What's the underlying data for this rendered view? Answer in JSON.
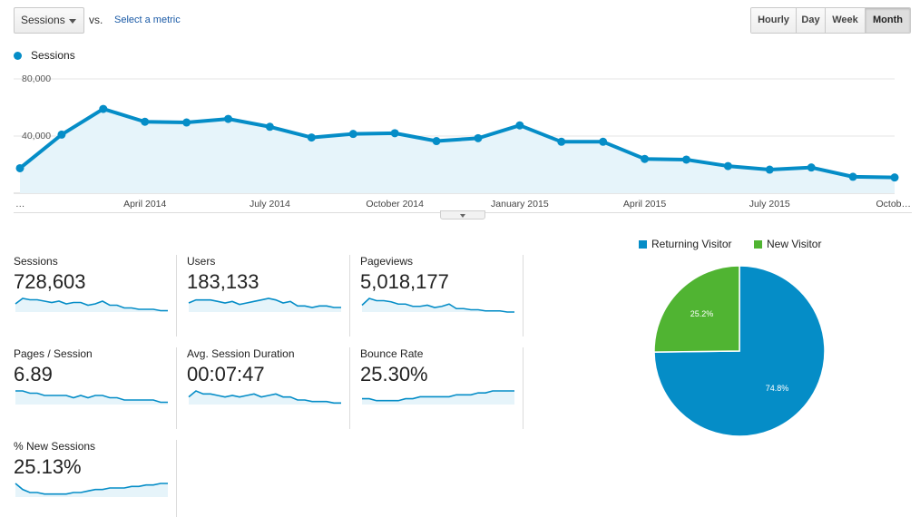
{
  "metric_selector": {
    "value": "Sessions"
  },
  "vs_label": "vs.",
  "select_metric_link": "Select a metric",
  "granularity": {
    "options": [
      "Hourly",
      "Day",
      "Week",
      "Month"
    ],
    "selected": "Month"
  },
  "colors": {
    "series": "#058dc7",
    "area": "#e6f4fa",
    "returning": "#058dc7",
    "new": "#50b432"
  },
  "chart_data": [
    {
      "type": "area",
      "legend_position": "top-left",
      "series": [
        {
          "name": "Sessions",
          "values": [
            17500,
            41000,
            59000,
            50000,
            49500,
            52000,
            46500,
            39000,
            41500,
            42000,
            36500,
            38500,
            47500,
            36000,
            36000,
            24000,
            23500,
            19000,
            16500,
            18000,
            11500,
            11000
          ]
        }
      ],
      "x_tick_labels": [
        "…",
        "April 2014",
        "July 2014",
        "October 2014",
        "January 2015",
        "April 2015",
        "July 2015",
        "Octob…"
      ],
      "y_tick_labels": [
        "80,000",
        "40,000"
      ],
      "ylim": [
        0,
        80000
      ],
      "grid": true
    },
    {
      "type": "pie",
      "legend_position": "top",
      "slices": [
        {
          "label": "Returning Visitor",
          "value": 74.8,
          "value_label": "74.8%"
        },
        {
          "label": "New Visitor",
          "value": 25.2,
          "value_label": "25.2%"
        }
      ]
    }
  ],
  "scorecards": [
    {
      "title": "Sessions",
      "value": "728,603",
      "spark": [
        6,
        10,
        9,
        9,
        8,
        7,
        8,
        6,
        7,
        7,
        5,
        6,
        8,
        5,
        5,
        3,
        3,
        2,
        2,
        2,
        1,
        1
      ]
    },
    {
      "title": "Users",
      "value": "183,133",
      "spark": [
        6,
        8,
        8,
        8,
        7,
        6,
        7,
        5,
        6,
        7,
        8,
        9,
        8,
        6,
        7,
        4,
        4,
        3,
        4,
        4,
        3,
        3
      ]
    },
    {
      "title": "Pageviews",
      "value": "5,018,177",
      "spark": [
        6,
        12,
        10,
        10,
        9,
        7,
        7,
        5,
        5,
        6,
        4,
        5,
        7,
        3,
        3,
        2,
        2,
        1,
        1,
        1,
        0,
        0
      ]
    },
    {
      "title": "Pages / Session",
      "value": "6.89",
      "spark": [
        6,
        6,
        5,
        5,
        4,
        4,
        4,
        4,
        3,
        4,
        3,
        4,
        4,
        3,
        3,
        2,
        2,
        2,
        2,
        2,
        1,
        1
      ]
    },
    {
      "title": "Avg. Session Duration",
      "value": "00:07:47",
      "spark": [
        5,
        9,
        7,
        7,
        6,
        5,
        6,
        5,
        6,
        7,
        5,
        6,
        7,
        5,
        5,
        3,
        3,
        2,
        2,
        2,
        1,
        1
      ]
    },
    {
      "title": "Bounce Rate",
      "value": "25.30%",
      "spark": [
        3,
        3,
        2,
        2,
        2,
        2,
        3,
        3,
        4,
        4,
        4,
        4,
        4,
        5,
        5,
        5,
        6,
        6,
        7,
        7,
        7,
        7
      ]
    },
    {
      "title": "% New Sessions",
      "value": "25.13%",
      "spark": [
        9,
        5,
        3,
        3,
        2,
        2,
        2,
        2,
        3,
        3,
        4,
        5,
        5,
        6,
        6,
        6,
        7,
        7,
        8,
        8,
        9,
        9
      ]
    }
  ]
}
